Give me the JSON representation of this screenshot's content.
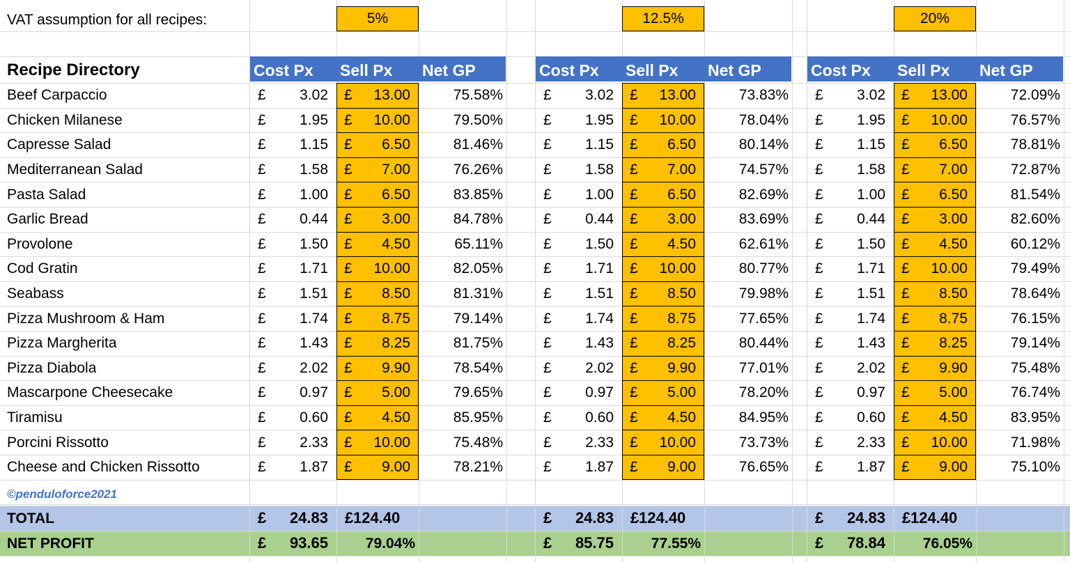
{
  "vat_label": "VAT assumption for all recipes:",
  "directory_title": "Recipe Directory",
  "watermark": "©penduloforce2021",
  "currency": "£",
  "headers": {
    "cost": "Cost Px",
    "sell": "Sell Px",
    "gp": "Net GP"
  },
  "recipes": [
    "Beef Carpaccio",
    "Chicken Milanese",
    "Capresse Salad",
    "Mediterranean Salad",
    "Pasta Salad",
    "Garlic Bread",
    "Provolone",
    "Cod Gratin",
    "Seabass",
    "Pizza Mushroom & Ham",
    "Pizza Margherita",
    "Pizza Diabola",
    "Mascarpone Cheesecake",
    "Tiramisu",
    "Porcini Rissotto",
    "Cheese and Chicken Rissotto"
  ],
  "cost": [
    "3.02",
    "1.95",
    "1.15",
    "1.58",
    "1.00",
    "0.44",
    "1.50",
    "1.71",
    "1.51",
    "1.74",
    "1.43",
    "2.02",
    "0.97",
    "0.60",
    "2.33",
    "1.87"
  ],
  "sell": [
    "13.00",
    "10.00",
    "6.50",
    "7.00",
    "6.50",
    "3.00",
    "4.50",
    "10.00",
    "8.50",
    "8.75",
    "8.25",
    "9.90",
    "5.00",
    "4.50",
    "10.00",
    "9.00"
  ],
  "scenarios": [
    {
      "vat": "5%",
      "gp": [
        "75.58%",
        "79.50%",
        "81.46%",
        "76.26%",
        "83.85%",
        "84.78%",
        "65.11%",
        "82.05%",
        "81.31%",
        "79.14%",
        "81.75%",
        "78.54%",
        "79.65%",
        "85.95%",
        "75.48%",
        "78.21%"
      ],
      "total_cost": "24.83",
      "total_sell": "124.40",
      "net_profit": "93.65",
      "net_pct": "79.04%"
    },
    {
      "vat": "12.5%",
      "gp": [
        "73.83%",
        "78.04%",
        "80.14%",
        "74.57%",
        "82.69%",
        "83.69%",
        "62.61%",
        "80.77%",
        "79.98%",
        "77.65%",
        "80.44%",
        "77.01%",
        "78.20%",
        "84.95%",
        "73.73%",
        "76.65%"
      ],
      "total_cost": "24.83",
      "total_sell": "124.40",
      "net_profit": "85.75",
      "net_pct": "77.55%"
    },
    {
      "vat": "20%",
      "gp": [
        "72.09%",
        "76.57%",
        "78.81%",
        "72.87%",
        "81.54%",
        "82.60%",
        "60.12%",
        "79.49%",
        "78.64%",
        "76.15%",
        "79.14%",
        "75.48%",
        "76.74%",
        "83.95%",
        "71.98%",
        "75.10%"
      ],
      "total_cost": "24.83",
      "total_sell": "124.40",
      "net_profit": "78.84",
      "net_pct": "76.05%"
    }
  ],
  "total_label": "TOTAL",
  "net_profit_label": "NET PROFIT",
  "colors": {
    "header": "#4472c4",
    "input": "#ffc000",
    "total_band": "#b4c6e7",
    "profit_band": "#a9d08e"
  }
}
